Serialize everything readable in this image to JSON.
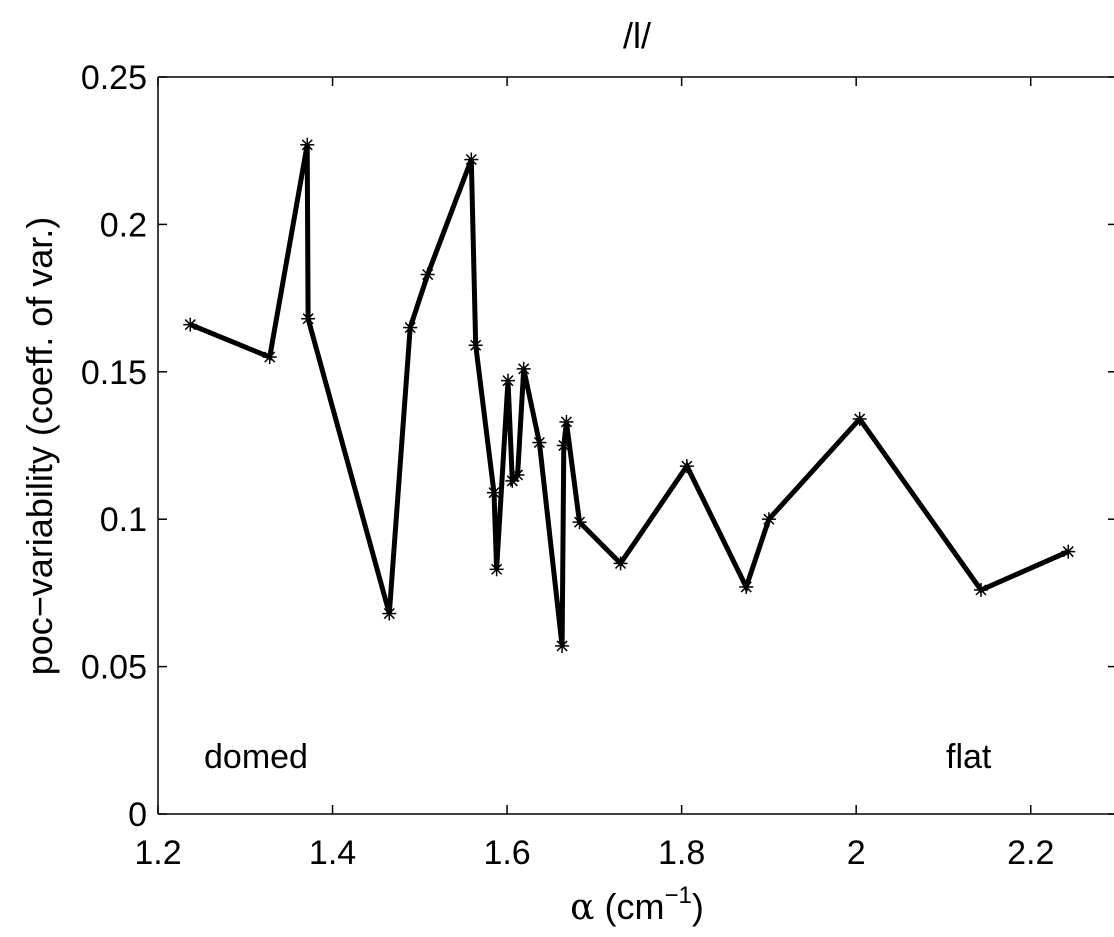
{
  "chart_data": {
    "type": "line",
    "title": "/l/",
    "xlabel": {
      "symbol": "α",
      "text": " (cm",
      "superscript": "−1",
      "close": ")"
    },
    "ylabel": "poc−variability (coeff. of var.)",
    "xlim": [
      1.2,
      2.3
    ],
    "ylim": [
      0,
      0.25
    ],
    "xticks": [
      "1.2",
      "1.4",
      "1.6",
      "1.8",
      "2",
      "2.2"
    ],
    "xtick_values": [
      1.2,
      1.4,
      1.6,
      1.8,
      2.0,
      2.2
    ],
    "yticks": [
      "0",
      "0.05",
      "0.1",
      "0.15",
      "0.2",
      "0.25"
    ],
    "ytick_values": [
      0,
      0.05,
      0.1,
      0.15,
      0.2,
      0.25
    ],
    "grid": false,
    "line_color": "#000000",
    "marker": "asterisk",
    "annotations": {
      "left": "domed",
      "right": "flat"
    },
    "series": [
      {
        "x": [
          1.237,
          1.328,
          1.371,
          1.372,
          1.465,
          1.489,
          1.509,
          1.559,
          1.564,
          1.585,
          1.588,
          1.601,
          1.606,
          1.612,
          1.619,
          1.637,
          1.663,
          1.665,
          1.668,
          1.683,
          1.73,
          1.806,
          1.874,
          1.9,
          2.004,
          2.143,
          2.243
        ],
        "y": [
          0.166,
          0.155,
          0.227,
          0.168,
          0.068,
          0.165,
          0.183,
          0.222,
          0.159,
          0.109,
          0.083,
          0.147,
          0.113,
          0.115,
          0.151,
          0.126,
          0.057,
          0.125,
          0.133,
          0.099,
          0.085,
          0.118,
          0.077,
          0.1,
          0.134,
          0.076,
          0.089
        ]
      }
    ]
  }
}
